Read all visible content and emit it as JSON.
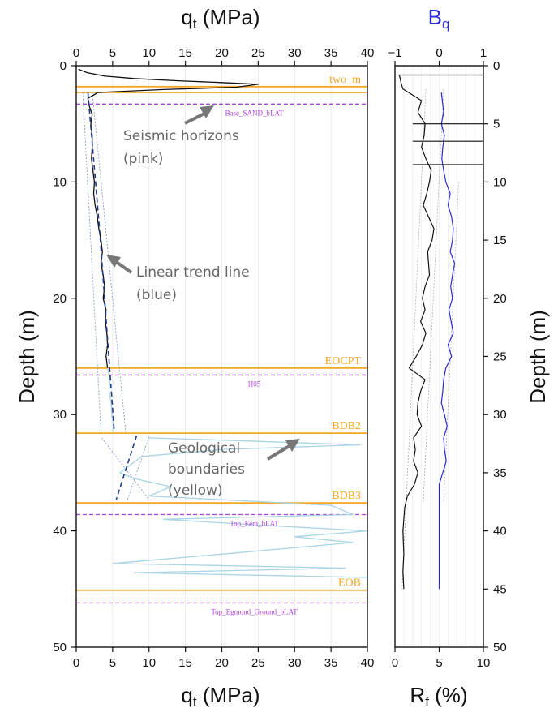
{
  "chart_data": [
    {
      "type": "line",
      "top_axis_label": "qt (MPa)",
      "xlabel": "qt (MPa)",
      "ylabel": "Depth (m)",
      "xlim": [
        0,
        40
      ],
      "ylim": [
        0,
        50
      ],
      "x_ticks": [
        "0",
        "5",
        "10",
        "15",
        "20",
        "25",
        "30",
        "35",
        "40"
      ],
      "y_ticks": [
        "0",
        "10",
        "20",
        "30",
        "40",
        "50"
      ],
      "series": [
        {
          "color": "#111111",
          "points": [
            [
              0.3,
              0.3
            ],
            [
              1.5,
              0.6
            ],
            [
              4,
              0.9
            ],
            [
              8,
              1.1
            ],
            [
              14,
              1.3
            ],
            [
              20,
              1.45
            ],
            [
              25,
              1.6
            ],
            [
              22,
              1.85
            ],
            [
              12,
              2.05
            ],
            [
              3,
              2.3
            ],
            [
              1.6,
              2.8
            ],
            [
              1.8,
              3.5
            ],
            [
              2.2,
              4.2
            ],
            [
              2,
              5
            ],
            [
              2.2,
              6
            ],
            [
              2.2,
              7
            ],
            [
              2.1,
              8
            ],
            [
              2.3,
              9
            ],
            [
              2.5,
              10
            ],
            [
              2.4,
              11
            ],
            [
              2.6,
              12
            ],
            [
              2.9,
              13
            ],
            [
              3.1,
              14
            ],
            [
              3.4,
              15
            ],
            [
              3.6,
              16
            ],
            [
              3.4,
              17
            ],
            [
              3.7,
              18
            ],
            [
              3.9,
              19
            ],
            [
              3.7,
              20
            ],
            [
              4.1,
              21
            ],
            [
              4.0,
              22
            ],
            [
              4.2,
              23
            ],
            [
              4.3,
              24
            ],
            [
              4.1,
              25
            ],
            [
              4.3,
              26
            ]
          ]
        },
        {
          "color": "#a8d4e4",
          "points": [
            [
              4.3,
              26
            ],
            [
              4.6,
              27
            ],
            [
              4.5,
              28
            ],
            [
              4.8,
              29
            ],
            [
              4.9,
              30
            ],
            [
              5.1,
              31
            ],
            [
              5.0,
              31.5
            ]
          ]
        },
        {
          "color": "#a8d4e4",
          "points": [
            [
              10,
              32
            ],
            [
              25,
              32.3
            ],
            [
              39,
              32.6
            ],
            [
              20,
              33
            ],
            [
              9,
              33.6
            ],
            [
              6,
              35
            ],
            [
              8,
              35.5
            ],
            [
              13,
              36.2
            ],
            [
              10,
              37
            ],
            [
              35,
              37.8
            ],
            [
              38,
              38.6
            ],
            [
              12,
              39
            ],
            [
              25,
              39.5
            ],
            [
              40,
              40
            ],
            [
              30,
              40.5
            ],
            [
              38,
              41
            ],
            [
              20,
              42
            ],
            [
              5,
              42.8
            ],
            [
              37,
              43.2
            ],
            [
              8,
              43.6
            ],
            [
              40,
              44
            ]
          ]
        },
        {
          "color": "#1f3a8a",
          "dashed": true,
          "points": [
            [
              1.6,
              2.3
            ],
            [
              3.2,
              14
            ],
            [
              5.2,
              31.3
            ]
          ]
        },
        {
          "color": "#1f3a8a",
          "dashed": true,
          "points": [
            [
              8.3,
              31.8
            ],
            [
              5.5,
              37.3
            ]
          ]
        }
      ]
    },
    {
      "type": "line",
      "top_axis_label": "Bq",
      "xlabel": "Rf (%)",
      "ylabel": "Depth (m)",
      "xlim": [
        0,
        10
      ],
      "top_xlim": [
        -1,
        1
      ],
      "ylim": [
        0,
        50
      ],
      "x_ticks": [
        "0",
        "5",
        "10"
      ],
      "top_x_ticks": [
        "−1",
        "0",
        "1"
      ],
      "y_ticks": [
        "0",
        "5",
        "10",
        "15",
        "20",
        "25",
        "30",
        "35",
        "40",
        "45",
        "50"
      ],
      "series": [
        {
          "color": "#111111",
          "points": [
            [
              0.5,
              0.8
            ],
            [
              0.7,
              1.5
            ],
            [
              0.9,
              2
            ],
            [
              3,
              3
            ],
            [
              2.6,
              4
            ],
            [
              3.4,
              5
            ],
            [
              3.3,
              6
            ],
            [
              3,
              7
            ],
            [
              3.5,
              8
            ],
            [
              4.1,
              9
            ],
            [
              3.9,
              10
            ],
            [
              3.6,
              11
            ],
            [
              3.2,
              12
            ],
            [
              3.8,
              13
            ],
            [
              4.4,
              14
            ],
            [
              4.2,
              15
            ],
            [
              3.7,
              16
            ],
            [
              3.8,
              17
            ],
            [
              3.9,
              18
            ],
            [
              3.4,
              19
            ],
            [
              3.1,
              20
            ],
            [
              3.4,
              21
            ],
            [
              2.9,
              22
            ],
            [
              3.5,
              23
            ],
            [
              3.1,
              24
            ],
            [
              2.4,
              25
            ],
            [
              1.6,
              26
            ],
            [
              3.4,
              27
            ],
            [
              2.9,
              28
            ],
            [
              2.6,
              29
            ],
            [
              2.5,
              30
            ],
            [
              3.0,
              31
            ],
            [
              2.1,
              32
            ],
            [
              2.3,
              33
            ],
            [
              2.1,
              34
            ],
            [
              2.6,
              35
            ],
            [
              2.2,
              36
            ],
            [
              1.4,
              37
            ],
            [
              1.1,
              38
            ],
            [
              0.9,
              40
            ],
            [
              1.0,
              42
            ],
            [
              0.9,
              43.5
            ],
            [
              1.0,
              45
            ]
          ]
        },
        {
          "color": "#2b2bd6",
          "points": [
            [
              0.05,
              2.3
            ],
            [
              0.1,
              4
            ],
            [
              0.05,
              5
            ],
            [
              0.12,
              6
            ],
            [
              0.08,
              7
            ],
            [
              0.06,
              8
            ],
            [
              0.1,
              9
            ],
            [
              0.15,
              10
            ],
            [
              0.25,
              11
            ],
            [
              0.2,
              12
            ],
            [
              0.28,
              13
            ],
            [
              0.32,
              14
            ],
            [
              0.3,
              15
            ],
            [
              0.25,
              16
            ],
            [
              0.35,
              17
            ],
            [
              0.3,
              18
            ],
            [
              0.26,
              19
            ],
            [
              0.3,
              20
            ],
            [
              0.22,
              21
            ],
            [
              0.27,
              22
            ],
            [
              0.32,
              23
            ],
            [
              0.2,
              24
            ],
            [
              0.28,
              25
            ],
            [
              0.15,
              26
            ],
            [
              0.1,
              27
            ],
            [
              0.08,
              28
            ],
            [
              0.05,
              29
            ],
            [
              0.12,
              30
            ],
            [
              0.18,
              31
            ],
            [
              0.1,
              32
            ],
            [
              0.12,
              33
            ],
            [
              0.16,
              34
            ],
            [
              0.08,
              35
            ],
            [
              0.0,
              36
            ],
            [
              0.0,
              37
            ],
            [
              0.0,
              45
            ]
          ]
        }
      ]
    }
  ],
  "horizons": [
    {
      "name": "two_m",
      "depth": 1.8,
      "kind": "geological",
      "color": "#f5a623"
    },
    {
      "name": "",
      "depth": 2.3,
      "kind": "geological",
      "color": "#f5a623"
    },
    {
      "name": "Base_SAND_bLAT",
      "depth": 3.3,
      "kind": "seismic",
      "color": "#b040e0"
    },
    {
      "name": "EOCPT",
      "depth": 26.0,
      "kind": "geological",
      "color": "#f5a623"
    },
    {
      "name": "H05",
      "depth": 26.6,
      "kind": "seismic",
      "color": "#b040e0"
    },
    {
      "name": "BDB2",
      "depth": 31.6,
      "kind": "geological",
      "color": "#f5a623"
    },
    {
      "name": "BDB3",
      "depth": 37.6,
      "kind": "geological",
      "color": "#f5a623"
    },
    {
      "name": "Top_Eem_bLAT",
      "depth": 38.6,
      "kind": "seismic",
      "color": "#b040e0"
    },
    {
      "name": "EOB",
      "depth": 45.1,
      "kind": "geological",
      "color": "#f5a623"
    },
    {
      "name": "Top_Egmond_Ground_bLAT",
      "depth": 46.2,
      "kind": "seismic",
      "color": "#b040e0"
    }
  ],
  "annotations": [
    {
      "lines": [
        "Seismic horizons",
        "(pink)"
      ]
    },
    {
      "lines": [
        "Linear trend line",
        "(blue)"
      ]
    },
    {
      "lines": [
        "Geological",
        "boundaries",
        "(yellow)"
      ]
    }
  ],
  "colors": {
    "geological": "#f5a623",
    "seismic": "#b040e0",
    "trend": "#1f3a8a",
    "bq": "#2b2bd6",
    "annotation": "#666666"
  }
}
